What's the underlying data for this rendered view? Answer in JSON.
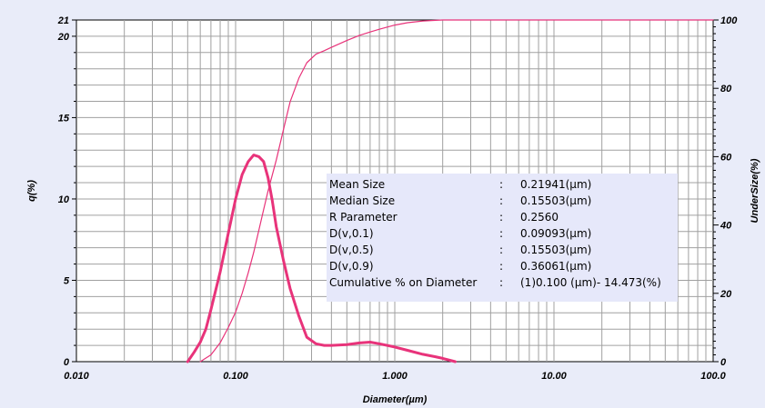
{
  "chart_data": {
    "type": "line",
    "title": "",
    "xlabel": "Diameter(µm)",
    "ylabel_left": "q(%)",
    "ylabel_right": "UnderSize(%)",
    "x_scale": "log",
    "xlim": [
      0.01,
      100
    ],
    "ylim_left": [
      0,
      21
    ],
    "ylim_right": [
      0,
      100
    ],
    "x_tick_labels": [
      "0.010",
      "0.100",
      "1.000",
      "10.00",
      "100.0"
    ],
    "y_left_tick_labels": [
      "0",
      "5",
      "10",
      "15",
      "20",
      "21"
    ],
    "y_right_tick_labels": [
      "0",
      "20",
      "40",
      "60",
      "80",
      "100"
    ],
    "grid": true,
    "series": [
      {
        "axis": "left",
        "color": "#e8337a",
        "x": [
          0.05,
          0.055,
          0.06,
          0.065,
          0.07,
          0.08,
          0.09,
          0.1,
          0.11,
          0.12,
          0.13,
          0.14,
          0.15,
          0.16,
          0.17,
          0.18,
          0.2,
          0.22,
          0.25,
          0.28,
          0.32,
          0.36,
          0.4,
          0.5,
          0.6,
          0.7,
          0.8,
          1.0,
          1.2,
          1.5,
          1.8,
          2.0,
          2.4
        ],
        "values": [
          0.0,
          0.6,
          1.2,
          2.0,
          3.2,
          5.5,
          7.9,
          10.0,
          11.5,
          12.3,
          12.7,
          12.6,
          12.3,
          11.3,
          9.9,
          8.3,
          6.2,
          4.5,
          2.8,
          1.5,
          1.1,
          1.0,
          1.0,
          1.05,
          1.15,
          1.2,
          1.1,
          0.9,
          0.7,
          0.45,
          0.3,
          0.2,
          0.0
        ]
      },
      {
        "axis": "right",
        "color": "#e8337a",
        "x": [
          0.06,
          0.07,
          0.08,
          0.09,
          0.1,
          0.11,
          0.12,
          0.13,
          0.14,
          0.15,
          0.16,
          0.18,
          0.2,
          0.22,
          0.25,
          0.28,
          0.32,
          0.36,
          0.4,
          0.5,
          0.6,
          0.7,
          0.8,
          1.0,
          1.2,
          1.5,
          1.8,
          2.0,
          3.0,
          10.0,
          100.0
        ],
        "values": [
          0.0,
          2.0,
          5.5,
          10.0,
          14.5,
          20.0,
          26.0,
          32.0,
          38.5,
          44.5,
          50.0,
          59.0,
          68.0,
          76.0,
          83.0,
          87.5,
          90.0,
          91.0,
          92.0,
          94.0,
          95.5,
          96.5,
          97.3,
          98.5,
          99.2,
          99.7,
          99.9,
          100.0,
          100.0,
          100.0,
          100.0
        ]
      }
    ]
  },
  "stats": [
    {
      "label": "Mean Size",
      "sep": ":",
      "value": "0.21941(µm)"
    },
    {
      "label": "Median Size",
      "sep": ":",
      "value": "0.15503(µm)"
    },
    {
      "label": "R Parameter",
      "sep": ":",
      "value": "0.2560"
    },
    {
      "label": "D(v,0.1)",
      "sep": ":",
      "value": "0.09093(µm)"
    },
    {
      "label": "D(v,0.5)",
      "sep": ":",
      "value": "0.15503(µm)"
    },
    {
      "label": "D(v,0.9)",
      "sep": ":",
      "value": "0.36061(µm)"
    },
    {
      "label": "Cumulative % on Diameter",
      "sep": ":",
      "value": "(1)0.100 (µm)-   14.473(%)"
    }
  ],
  "colors": {
    "background": "#e9ecf9",
    "plot_area": "#ffffff",
    "grid": "#a0a0a0",
    "curve": "#e8337a",
    "stats_box": "#e6e8fa"
  }
}
